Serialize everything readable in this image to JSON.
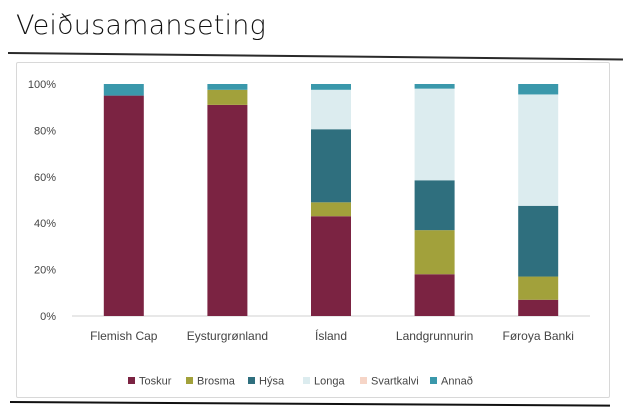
{
  "slide": {
    "title": "Veiðusamanseting"
  },
  "chart_data": {
    "type": "bar",
    "stacked": true,
    "title": "",
    "xlabel": "",
    "ylabel": "",
    "ylim": [
      0,
      100
    ],
    "yticks": [
      "0%",
      "20%",
      "40%",
      "60%",
      "80%",
      "100%"
    ],
    "grid": false,
    "legend_position": "bottom",
    "categories": [
      "Flemish Cap",
      "Eysturgrønland",
      "Ísland",
      "Landgrunnurin",
      "Føroya Banki"
    ],
    "series": [
      {
        "name": "Toskur",
        "color": "#7b2342",
        "values": [
          95,
          91,
          43,
          18,
          7
        ]
      },
      {
        "name": "Brosma",
        "color": "#a2a13b",
        "values": [
          0,
          6.5,
          6,
          19,
          10
        ]
      },
      {
        "name": "Hýsa",
        "color": "#2f6f7e",
        "values": [
          0,
          0,
          31.5,
          21.5,
          30.5
        ]
      },
      {
        "name": "Longa",
        "color": "#dcecef",
        "values": [
          0,
          0,
          17,
          39.5,
          48
        ]
      },
      {
        "name": "Svartkalvi",
        "color": "#f6d5c7",
        "values": [
          0,
          0,
          0,
          0,
          0
        ]
      },
      {
        "name": "Annað",
        "color": "#3a98ab",
        "values": [
          5,
          2.5,
          2.5,
          2,
          4.5
        ]
      }
    ]
  }
}
